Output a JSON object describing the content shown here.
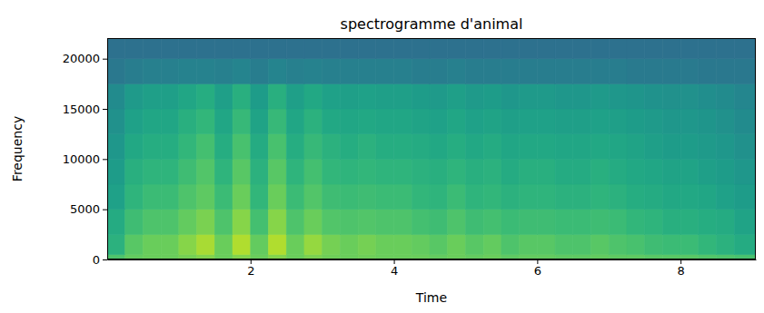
{
  "chart_data": {
    "type": "heatmap",
    "title": "spectrogramme d'animal",
    "x_label": "Time",
    "y_label": "Frequency",
    "xlim": [
      0,
      9.05
    ],
    "ylim": [
      0,
      22050
    ],
    "xticks": [
      2,
      4,
      6,
      8
    ],
    "yticks": [
      0,
      5000,
      10000,
      15000,
      20000
    ],
    "color": "viridis",
    "zlim": [
      -100,
      0
    ],
    "x_bins": [
      0,
      0.25,
      0.5,
      0.75,
      1.0,
      1.25,
      1.5,
      1.75,
      2.0,
      2.25,
      2.5,
      2.75,
      3.0,
      3.25,
      3.5,
      3.75,
      4.0,
      4.25,
      4.5,
      4.75,
      5.0,
      5.25,
      5.5,
      5.75,
      6.0,
      6.25,
      6.5,
      6.75,
      7.0,
      7.25,
      7.5,
      7.75,
      8.0,
      8.25,
      8.5,
      8.75,
      9.05
    ],
    "y_bins": [
      0,
      500,
      2500,
      5000,
      7500,
      10000,
      12500,
      15000,
      17500,
      20000,
      22050
    ],
    "values": [
      [
        -28,
        -24,
        -23,
        -23,
        -21,
        -19,
        -23,
        -19,
        -23,
        -19,
        -23,
        -20,
        -22,
        -23,
        -22,
        -23,
        -23,
        -23,
        -24,
        -23,
        -24,
        -23,
        -25,
        -24,
        -24,
        -25,
        -25,
        -24,
        -25,
        -25,
        -26,
        -26,
        -26,
        -27,
        -28,
        -29
      ],
      [
        -36,
        -26,
        -23,
        -23,
        -18,
        -13,
        -23,
        -12,
        -24,
        -12,
        -23,
        -16,
        -21,
        -23,
        -21,
        -23,
        -23,
        -24,
        -26,
        -23,
        -26,
        -24,
        -28,
        -26,
        -26,
        -28,
        -28,
        -26,
        -28,
        -29,
        -31,
        -32,
        -32,
        -34,
        -36,
        -39
      ],
      [
        -39,
        -31,
        -28,
        -28,
        -24,
        -20,
        -28,
        -18,
        -30,
        -18,
        -28,
        -23,
        -27,
        -28,
        -27,
        -28,
        -28,
        -30,
        -31,
        -28,
        -31,
        -30,
        -32,
        -31,
        -31,
        -32,
        -32,
        -31,
        -32,
        -34,
        -35,
        -37,
        -37,
        -38,
        -39,
        -42
      ],
      [
        -43,
        -35,
        -32,
        -32,
        -28,
        -25,
        -32,
        -23,
        -34,
        -23,
        -32,
        -27,
        -31,
        -32,
        -31,
        -32,
        -32,
        -34,
        -35,
        -32,
        -35,
        -34,
        -36,
        -35,
        -35,
        -36,
        -36,
        -35,
        -36,
        -38,
        -39,
        -40,
        -40,
        -41,
        -43,
        -45
      ],
      [
        -45,
        -37,
        -35,
        -35,
        -31,
        -27,
        -35,
        -26,
        -36,
        -26,
        -35,
        -30,
        -34,
        -35,
        -34,
        -35,
        -35,
        -36,
        -37,
        -35,
        -37,
        -36,
        -39,
        -37,
        -37,
        -39,
        -39,
        -37,
        -39,
        -40,
        -41,
        -42,
        -42,
        -44,
        -45,
        -47
      ],
      [
        -47,
        -40,
        -38,
        -38,
        -34,
        -30,
        -38,
        -29,
        -39,
        -29,
        -38,
        -33,
        -36,
        -38,
        -36,
        -38,
        -38,
        -39,
        -40,
        -38,
        -40,
        -39,
        -41,
        -40,
        -40,
        -41,
        -41,
        -40,
        -41,
        -42,
        -44,
        -45,
        -45,
        -46,
        -47,
        -50
      ],
      [
        -50,
        -43,
        -41,
        -41,
        -37,
        -34,
        -41,
        -33,
        -42,
        -33,
        -41,
        -36,
        -40,
        -41,
        -40,
        -41,
        -41,
        -42,
        -43,
        -41,
        -43,
        -42,
        -44,
        -43,
        -43,
        -44,
        -44,
        -43,
        -44,
        -45,
        -46,
        -47,
        -47,
        -48,
        -50,
        -52
      ],
      [
        -52,
        -46,
        -44,
        -44,
        -41,
        -38,
        -44,
        -37,
        -45,
        -37,
        -44,
        -40,
        -43,
        -44,
        -43,
        -44,
        -44,
        -45,
        -46,
        -44,
        -46,
        -45,
        -47,
        -46,
        -46,
        -47,
        -47,
        -46,
        -47,
        -48,
        -49,
        -50,
        -50,
        -51,
        -52,
        -54
      ],
      [
        -60,
        -58,
        -57,
        -57,
        -56,
        -56,
        -57,
        -55,
        -58,
        -55,
        -57,
        -56,
        -57,
        -57,
        -57,
        -57,
        -57,
        -58,
        -58,
        -57,
        -58,
        -58,
        -58,
        -58,
        -58,
        -58,
        -58,
        -58,
        -58,
        -59,
        -59,
        -59,
        -59,
        -60,
        -60,
        -60
      ],
      [
        -63,
        -63,
        -63,
        -63,
        -63,
        -63,
        -63,
        -63,
        -63,
        -63,
        -63,
        -63,
        -63,
        -63,
        -63,
        -63,
        -63,
        -63,
        -63,
        -63,
        -63,
        -63,
        -63,
        -63,
        -63,
        -63,
        -63,
        -63,
        -63,
        -63,
        -63,
        -63,
        -63,
        -63,
        -63,
        -63
      ]
    ]
  }
}
